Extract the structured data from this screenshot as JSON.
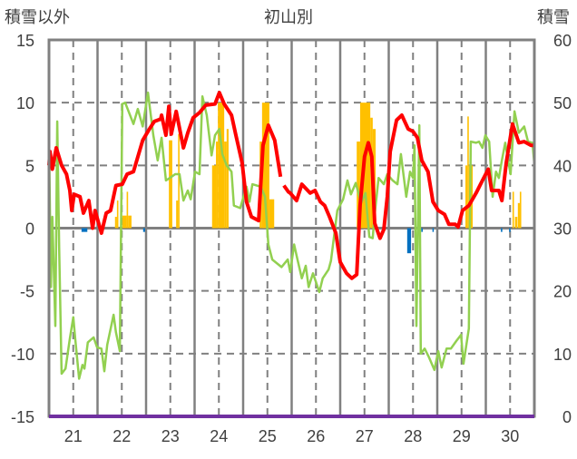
{
  "chart_data": {
    "type": "line",
    "title": "初山別",
    "ylabel_left": "積雪以外",
    "ylabel_right": "積雪",
    "xlim": [
      21,
      31
    ],
    "ylim_left": [
      -15,
      15
    ],
    "ylim_right": [
      0,
      60
    ],
    "left_ticks": [
      "15",
      "10",
      "5",
      "0",
      "-5",
      "-10",
      "-15"
    ],
    "left_tick_values": [
      15,
      10,
      5,
      0,
      -5,
      -10,
      -15
    ],
    "right_ticks": [
      "60",
      "50",
      "40",
      "30",
      "20",
      "10",
      "0"
    ],
    "right_tick_values": [
      60,
      50,
      40,
      30,
      20,
      10,
      0
    ],
    "x_ticks": [
      "21",
      "22",
      "23",
      "24",
      "25",
      "26",
      "27",
      "28",
      "29",
      "30"
    ],
    "x_tick_values": [
      21.5,
      22.5,
      23.5,
      24.5,
      25.5,
      26.5,
      27.5,
      28.5,
      29.5,
      30.5
    ],
    "grid": true,
    "colors": {
      "red": "#ff0000",
      "green": "#92d050",
      "orange": "#ffc000",
      "blue": "#0070c0",
      "cyan": "#00b0f0",
      "purple": "#7030a0",
      "grid": "#808080"
    },
    "series": [
      {
        "name": "red",
        "axis": "left",
        "color": "#ff0000",
        "points": [
          [
            21.0,
            5.0
          ],
          [
            21.02,
            6.1
          ],
          [
            21.07,
            4.7
          ],
          [
            21.15,
            6.4
          ],
          [
            21.26,
            5.0
          ],
          [
            21.36,
            4.3
          ],
          [
            21.43,
            3.0
          ],
          [
            21.47,
            1.4
          ],
          [
            21.52,
            2.7
          ],
          [
            21.64,
            2.5
          ],
          [
            21.71,
            1.2
          ],
          [
            21.82,
            2.2
          ],
          [
            21.9,
            0
          ],
          [
            21.95,
            1.4
          ],
          [
            22.08,
            -0.4
          ],
          [
            22.18,
            1.2
          ],
          [
            22.27,
            1.4
          ],
          [
            22.38,
            3.4
          ],
          [
            22.51,
            3.5
          ],
          [
            22.61,
            4.3
          ],
          [
            22.74,
            4.5
          ],
          [
            22.93,
            7.0
          ],
          [
            23.07,
            7.9
          ],
          [
            23.17,
            8.5
          ],
          [
            23.3,
            8.7
          ],
          [
            23.32,
            9.0
          ],
          [
            23.41,
            7.4
          ],
          [
            23.47,
            9.7
          ],
          [
            23.52,
            7.5
          ],
          [
            23.62,
            9.3
          ],
          [
            23.77,
            6.4
          ],
          [
            23.86,
            7.6
          ],
          [
            23.97,
            8.8
          ],
          [
            24.1,
            9.2
          ],
          [
            24.23,
            9.8
          ],
          [
            24.42,
            9.9
          ],
          [
            24.51,
            10.8
          ],
          [
            24.61,
            9.9
          ],
          [
            24.76,
            9.0
          ],
          [
            24.85,
            7.4
          ],
          [
            24.98,
            5.2
          ],
          [
            25.07,
            2.1
          ],
          [
            25.17,
            0.9
          ],
          [
            25.32,
            0.6
          ],
          [
            25.41,
            6.6
          ],
          [
            25.52,
            8.2
          ],
          [
            25.65,
            7.0
          ],
          [
            25.77,
            4.1
          ],
          null,
          [
            25.84,
            3.4
          ],
          [
            25.93,
            2.9
          ],
          [
            25.97,
            2.8
          ],
          [
            26.1,
            2.2
          ],
          [
            26.21,
            3.5
          ],
          [
            26.38,
            2.8
          ],
          [
            26.48,
            3.0
          ],
          [
            26.59,
            2.1
          ],
          [
            26.68,
            1.8
          ],
          [
            26.78,
            0.9
          ],
          [
            26.91,
            -0.4
          ],
          [
            27.0,
            -2.7
          ],
          [
            27.13,
            -3.6
          ],
          [
            27.24,
            -4.0
          ],
          [
            27.34,
            -3.7
          ],
          [
            27.41,
            1.8
          ],
          [
            27.5,
            5.7
          ],
          [
            27.58,
            6.8
          ],
          [
            27.65,
            5.7
          ],
          [
            27.71,
            0.4
          ],
          [
            27.82,
            -0.8
          ],
          [
            27.9,
            -0.1
          ],
          [
            27.97,
            2.5
          ],
          [
            28.03,
            6.1
          ],
          [
            28.16,
            8.6
          ],
          [
            28.27,
            9.0
          ],
          [
            28.4,
            7.9
          ],
          [
            28.5,
            7.7
          ],
          [
            28.59,
            7.2
          ],
          [
            28.68,
            5.4
          ],
          [
            28.81,
            4.5
          ],
          [
            28.91,
            2.1
          ],
          [
            29.02,
            1.4
          ],
          [
            29.15,
            1.1
          ],
          [
            29.24,
            0.3
          ],
          [
            29.37,
            0.3
          ],
          [
            29.43,
            0.1
          ],
          [
            29.52,
            1.4
          ],
          [
            29.65,
            1.8
          ],
          [
            29.8,
            2.8
          ],
          [
            29.93,
            3.8
          ],
          [
            30.05,
            4.7
          ],
          [
            30.12,
            3.0
          ],
          [
            30.27,
            3.0
          ],
          [
            30.33,
            2.2
          ],
          [
            30.42,
            5.2
          ],
          [
            30.55,
            8.3
          ],
          [
            30.68,
            6.8
          ],
          [
            30.79,
            6.9
          ],
          [
            30.93,
            6.6
          ],
          [
            31.0,
            6.6
          ]
        ]
      },
      {
        "name": "green",
        "axis": "left",
        "color": "#92d050",
        "points": [
          [
            21.0,
            7.4
          ],
          [
            21.04,
            -4.7
          ],
          [
            21.07,
            0.9
          ],
          [
            21.13,
            -7.8
          ],
          [
            21.17,
            8.5
          ],
          [
            21.21,
            -1.5
          ],
          [
            21.26,
            -11.6
          ],
          [
            21.34,
            -11.2
          ],
          [
            21.43,
            -8.8
          ],
          [
            21.5,
            -7.1
          ],
          [
            21.54,
            -8.8
          ],
          [
            21.62,
            -12.0
          ],
          [
            21.69,
            -10.9
          ],
          [
            21.73,
            -11.2
          ],
          [
            21.8,
            -9.1
          ],
          [
            21.92,
            -8.7
          ],
          [
            21.99,
            -9.5
          ],
          [
            22.08,
            -9.6
          ],
          [
            22.14,
            -11.4
          ],
          [
            22.2,
            -9.3
          ],
          [
            22.33,
            -6.9
          ],
          [
            22.38,
            -8.3
          ],
          [
            22.46,
            -9.8
          ],
          [
            22.51,
            9.9
          ],
          [
            22.57,
            10.0
          ],
          [
            22.74,
            8.3
          ],
          [
            22.83,
            9.5
          ],
          [
            22.93,
            8.1
          ],
          [
            23.04,
            10.8
          ],
          [
            23.15,
            7.4
          ],
          [
            23.24,
            5.4
          ],
          [
            23.32,
            7.2
          ],
          [
            23.41,
            3.8
          ],
          [
            23.49,
            4.0
          ],
          [
            23.6,
            4.3
          ],
          [
            23.69,
            4.3
          ],
          [
            23.77,
            2.2
          ],
          [
            23.86,
            3.0
          ],
          [
            23.92,
            2.3
          ],
          [
            24.01,
            4.5
          ],
          [
            24.1,
            4.3
          ],
          [
            24.16,
            10.5
          ],
          [
            24.25,
            9.0
          ],
          [
            24.35,
            5.8
          ],
          [
            24.42,
            7.4
          ],
          [
            24.51,
            7.9
          ],
          [
            24.57,
            5.9
          ],
          [
            24.66,
            5.0
          ],
          [
            24.76,
            4.5
          ],
          [
            24.81,
            1.8
          ],
          [
            24.94,
            1.6
          ],
          [
            25.07,
            3.3
          ],
          [
            25.13,
            2.1
          ],
          [
            25.19,
            3.5
          ],
          [
            25.36,
            3.3
          ],
          [
            25.45,
            2.5
          ],
          [
            25.52,
            -1.3
          ],
          [
            25.6,
            -2.5
          ],
          [
            25.79,
            -3.1
          ],
          [
            25.92,
            -2.5
          ],
          [
            25.97,
            -3.5
          ],
          [
            26.05,
            -1.3
          ],
          [
            26.12,
            -2.5
          ],
          [
            26.21,
            -4.0
          ],
          [
            26.29,
            -3.0
          ],
          [
            26.35,
            -4.7
          ],
          [
            26.44,
            -3.6
          ],
          [
            26.57,
            -5.1
          ],
          [
            26.64,
            -4.0
          ],
          [
            26.76,
            -3.3
          ],
          [
            26.81,
            -2.6
          ],
          [
            26.94,
            1.4
          ],
          [
            27.06,
            2.3
          ],
          [
            27.15,
            3.8
          ],
          [
            27.22,
            2.7
          ],
          [
            27.32,
            3.6
          ],
          [
            27.43,
            2.0
          ],
          [
            27.52,
            2.8
          ],
          [
            27.6,
            -0.7
          ],
          [
            27.67,
            -0.8
          ],
          [
            27.71,
            1.1
          ],
          [
            27.79,
            4.0
          ],
          [
            27.9,
            3.5
          ],
          [
            27.97,
            4.3
          ],
          [
            28.08,
            3.8
          ],
          [
            28.18,
            3.5
          ],
          [
            28.25,
            5.9
          ],
          [
            28.36,
            2.5
          ],
          [
            28.44,
            4.5
          ],
          [
            28.5,
            4.0
          ],
          [
            28.53,
            6.6
          ],
          [
            28.57,
            -7.8
          ],
          [
            28.63,
            8.2
          ],
          [
            28.66,
            -10.0
          ],
          [
            28.74,
            -9.6
          ],
          [
            28.83,
            -10.3
          ],
          [
            28.94,
            -11.3
          ],
          [
            29.02,
            -9.8
          ],
          [
            29.09,
            -11.1
          ],
          [
            29.19,
            -9.6
          ],
          [
            29.28,
            -9.6
          ],
          [
            29.39,
            -9.0
          ],
          [
            29.49,
            -8.5
          ],
          [
            29.54,
            -10.8
          ],
          [
            29.65,
            -8.0
          ],
          [
            29.69,
            6.9
          ],
          [
            29.8,
            6.8
          ],
          [
            29.86,
            6.9
          ],
          [
            29.93,
            6.4
          ],
          [
            29.99,
            7.4
          ],
          [
            30.07,
            6.9
          ],
          [
            30.14,
            2.5
          ],
          [
            30.21,
            4.5
          ],
          [
            30.27,
            4.0
          ],
          [
            30.33,
            5.4
          ],
          [
            30.4,
            6.8
          ],
          [
            30.46,
            5.4
          ],
          [
            30.51,
            4.3
          ],
          [
            30.59,
            9.3
          ],
          [
            30.68,
            7.6
          ],
          [
            30.79,
            8.1
          ],
          [
            30.87,
            6.9
          ],
          [
            30.96,
            6.8
          ],
          [
            31.0,
            5.1
          ]
        ]
      },
      {
        "name": "snow-depth",
        "axis": "right",
        "color": "#7030a0",
        "points": [
          [
            21.0,
            0
          ],
          [
            31.0,
            0
          ]
        ]
      }
    ],
    "bars": [
      {
        "name": "orange",
        "axis": "left",
        "color": "#ffc000",
        "segments": [
          [
            22.36,
            22.4,
            0.9
          ],
          [
            22.4,
            22.43,
            2.2
          ],
          [
            22.51,
            22.6,
            1.0
          ],
          [
            22.6,
            22.63,
            2.9
          ],
          [
            22.63,
            22.7,
            1.0
          ],
          [
            23.47,
            23.54,
            7.0
          ],
          [
            23.62,
            23.66,
            2.2
          ],
          [
            23.66,
            23.69,
            7.5
          ],
          [
            24.36,
            24.44,
            5.0
          ],
          [
            24.44,
            24.48,
            6.9
          ],
          [
            24.48,
            24.61,
            10
          ],
          [
            24.61,
            24.66,
            6.9
          ],
          [
            24.66,
            24.7,
            7.9
          ],
          [
            25.34,
            25.39,
            6.9
          ],
          [
            25.39,
            25.54,
            10
          ],
          [
            25.54,
            25.64,
            2.3
          ],
          [
            27.34,
            27.41,
            6.9
          ],
          [
            27.41,
            27.62,
            10
          ],
          [
            27.62,
            27.67,
            8.8
          ],
          [
            27.67,
            27.73,
            7.9
          ],
          [
            29.58,
            29.62,
            5.0
          ],
          [
            29.62,
            29.65,
            8.9
          ],
          [
            29.65,
            29.73,
            5.0
          ],
          [
            30.55,
            30.58,
            2.9
          ],
          [
            30.6,
            30.65,
            0.9
          ],
          [
            30.66,
            30.7,
            2.0
          ],
          [
            30.7,
            30.73,
            2.9
          ]
        ]
      },
      {
        "name": "blue",
        "axis": "left",
        "color": "#0070c0",
        "segments": [
          [
            21.67,
            21.79,
            -0.3
          ],
          [
            22.94,
            22.98,
            -0.3
          ],
          [
            28.38,
            28.46,
            -2.0
          ],
          [
            28.67,
            28.7,
            -0.3
          ],
          [
            28.9,
            28.92,
            -0.3
          ],
          [
            30.31,
            30.34,
            -0.3
          ],
          [
            30.48,
            30.51,
            -0.3
          ]
        ]
      },
      {
        "name": "cyan",
        "axis": "left",
        "color": "#00b0f0",
        "segments": [
          [
            21.0,
            21.03,
            -3.5
          ]
        ]
      }
    ]
  }
}
